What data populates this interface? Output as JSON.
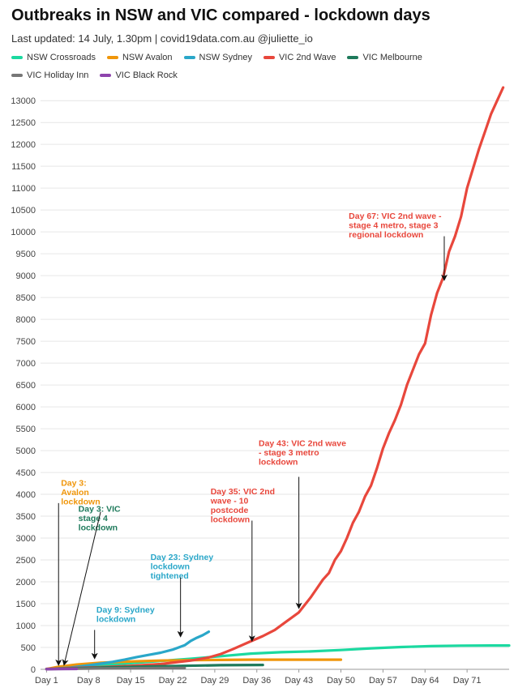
{
  "title": "Outbreaks in NSW and VIC compared - lockdown days",
  "subtitle": "Last updated: 14 July, 1.30pm | covid19data.com.au @juliette_io",
  "chart_data": {
    "type": "line",
    "xlabel": "",
    "ylabel": "",
    "xlim": [
      0,
      78
    ],
    "ylim": [
      0,
      13300
    ],
    "xticks": [
      1,
      8,
      15,
      22,
      29,
      36,
      43,
      50,
      57,
      64,
      71
    ],
    "xtick_labels": [
      "Day 1",
      "Day 8",
      "Day 15",
      "Day 22",
      "Day 29",
      "Day 36",
      "Day 43",
      "Day 50",
      "Day 57",
      "Day 64",
      "Day 71"
    ],
    "yticks": [
      0,
      500,
      1000,
      1500,
      2000,
      2500,
      3000,
      3500,
      4000,
      4500,
      5000,
      5500,
      6000,
      6500,
      7000,
      7500,
      8000,
      8500,
      9000,
      9500,
      10000,
      10500,
      11000,
      11500,
      12000,
      12500,
      13000
    ],
    "grid": true,
    "legend_position": "top",
    "series": [
      {
        "name": "NSW Crossroads",
        "color": "#1bd9a0",
        "x": [
          1,
          5,
          10,
          15,
          20,
          25,
          30,
          35,
          40,
          45,
          50,
          55,
          60,
          65,
          70,
          75,
          78
        ],
        "y": [
          5,
          40,
          90,
          140,
          190,
          240,
          300,
          360,
          390,
          410,
          440,
          480,
          510,
          530,
          540,
          545,
          545
        ]
      },
      {
        "name": "NSW Avalon",
        "color": "#f0960a",
        "x": [
          1,
          3,
          6,
          10,
          15,
          20,
          25,
          30,
          35,
          40,
          45,
          50
        ],
        "y": [
          5,
          60,
          110,
          150,
          180,
          200,
          210,
          215,
          220,
          220,
          220,
          220
        ]
      },
      {
        "name": "NSW Sydney",
        "color": "#2aa7c9",
        "x": [
          1,
          5,
          8,
          10,
          12,
          14,
          16,
          18,
          20,
          22,
          24,
          25,
          26,
          27,
          28
        ],
        "y": [
          5,
          40,
          90,
          130,
          170,
          220,
          280,
          330,
          380,
          450,
          550,
          650,
          720,
          780,
          860
        ]
      },
      {
        "name": "VIC 2nd Wave",
        "color": "#e8473c",
        "x": [
          1,
          5,
          10,
          15,
          20,
          25,
          28,
          30,
          32,
          35,
          37,
          39,
          41,
          43,
          45,
          46,
          47,
          48,
          49,
          50,
          51,
          52,
          53,
          54,
          55,
          56,
          57,
          58,
          59,
          60,
          61,
          62,
          63,
          64,
          65,
          66,
          67,
          68,
          69,
          70,
          71,
          72,
          73,
          74,
          75,
          76,
          77
        ],
        "y": [
          10,
          30,
          50,
          80,
          120,
          200,
          270,
          350,
          460,
          640,
          760,
          900,
          1100,
          1300,
          1650,
          1850,
          2050,
          2200,
          2500,
          2700,
          3000,
          3350,
          3600,
          3950,
          4200,
          4600,
          5050,
          5400,
          5700,
          6050,
          6500,
          6850,
          7200,
          7450,
          8100,
          8600,
          8950,
          9550,
          9900,
          10350,
          11000,
          11450,
          11900,
          12300,
          12700,
          13000,
          13300
        ]
      },
      {
        "name": "VIC Melbourne",
        "color": "#1e7a5b",
        "x": [
          1,
          10,
          20,
          30,
          37
        ],
        "y": [
          5,
          40,
          70,
          95,
          100
        ]
      },
      {
        "name": "VIC Holiday Inn",
        "color": "#777777",
        "x": [
          1,
          10,
          20,
          24
        ],
        "y": [
          5,
          20,
          30,
          30
        ]
      },
      {
        "name": "VIC Black Rock",
        "color": "#8e44ad",
        "x": [
          1,
          3,
          6
        ],
        "y": [
          2,
          6,
          10
        ]
      }
    ],
    "annotations": [
      {
        "lines": [
          "Day 3:",
          "Avalon",
          "lockdown"
        ],
        "color": "#f0960a",
        "x": 3.4,
        "y": 4200,
        "ax": 3,
        "ay": 3800,
        "tx": 3,
        "ty": 150
      },
      {
        "lines": [
          "Day 3: VIC",
          "stage 4",
          "lockdown"
        ],
        "color": "#1e7a5b",
        "x": 6.3,
        "y": 3600,
        "ax": 10,
        "ay": 3600,
        "tx": 4,
        "ty": 150
      },
      {
        "lines": [
          "Day 9: Sydney",
          "lockdown"
        ],
        "color": "#2aa7c9",
        "x": 9.3,
        "y": 1300,
        "ax": 9,
        "ay": 900,
        "tx": 9,
        "ty": 300
      },
      {
        "lines": [
          "Day 23: Sydney",
          "lockdown",
          "tightened"
        ],
        "color": "#2aa7c9",
        "x": 18.3,
        "y": 2500,
        "ax": 23.3,
        "ay": 2100,
        "tx": 23.3,
        "ty": 800
      },
      {
        "lines": [
          "Day 35: VIC 2nd",
          "wave - 10",
          "postcode",
          "lockdown"
        ],
        "color": "#e8473c",
        "x": 28.3,
        "y": 4000,
        "ax": 35.2,
        "ay": 3400,
        "tx": 35.2,
        "ty": 700
      },
      {
        "lines": [
          "Day 43: VIC 2nd wave",
          "- stage 3 metro",
          "lockdown"
        ],
        "color": "#e8473c",
        "x": 36.3,
        "y": 5100,
        "ax": 43,
        "ay": 4400,
        "tx": 43,
        "ty": 1450
      },
      {
        "lines": [
          "Day 67: VIC 2nd wave -",
          "stage 4 metro, stage 3",
          "regional lockdown"
        ],
        "color": "#e8473c",
        "x": 51.3,
        "y": 10300,
        "ax": 67.2,
        "ay": 9900,
        "tx": 67.2,
        "ty": 8950
      }
    ]
  }
}
